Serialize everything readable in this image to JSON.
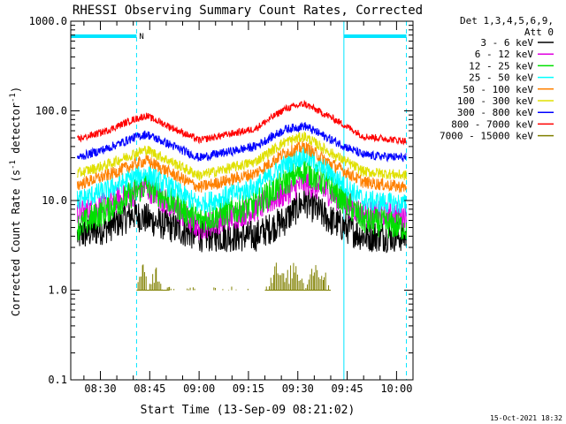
{
  "chart_data": {
    "type": "line",
    "title": "RHESSI Observing Summary Count Rates, Corrected",
    "xlabel": "Start Time (13-Sep-09 08:21:02)",
    "ylabel_main": "Corrected Count Rate (s",
    "ylabel_sup1": "-1",
    "ylabel_mid": " detector",
    "ylabel_sup2": "-1",
    "ylabel_end": ")",
    "yscale": "log",
    "ylim": [
      0.1,
      1000
    ],
    "xlim_minutes": [
      501,
      605
    ],
    "yticks": [
      {
        "v": 0.1,
        "label": "0.1"
      },
      {
        "v": 1,
        "label": "1.0"
      },
      {
        "v": 10,
        "label": "10.0"
      },
      {
        "v": 100,
        "label": "100.0"
      },
      {
        "v": 1000,
        "label": "1000.0"
      }
    ],
    "xticks": [
      {
        "m": 510,
        "label": "08:30"
      },
      {
        "m": 525,
        "label": "08:45"
      },
      {
        "m": 540,
        "label": "09:00"
      },
      {
        "m": 555,
        "label": "09:15"
      },
      {
        "m": 570,
        "label": "09:30"
      },
      {
        "m": 585,
        "label": "09:45"
      },
      {
        "m": 600,
        "label": "10:00"
      }
    ],
    "legend_header": [
      "Det 1,3,4,5,6,9,",
      "Att 0"
    ],
    "series": [
      {
        "name": "3 - 6 keV",
        "color": "#000000",
        "x": [
          503,
          512,
          520,
          540,
          557,
          566,
          572,
          580,
          590,
          603
        ],
        "y": [
          4,
          5,
          7,
          4,
          4,
          6,
          10,
          6,
          4,
          4
        ]
      },
      {
        "name": "6 - 12 keV",
        "color": "#e000e0",
        "x": [
          503,
          512,
          520,
          524,
          540,
          557,
          566,
          572,
          580,
          590,
          603
        ],
        "y": [
          7,
          9,
          12,
          14,
          5,
          8,
          12,
          16,
          12,
          7,
          7
        ]
      },
      {
        "name": "12 - 25 keV",
        "color": "#00e000",
        "x": [
          503,
          512,
          520,
          524,
          540,
          557,
          566,
          572,
          580,
          590,
          603
        ],
        "y": [
          5,
          8,
          12,
          15,
          6,
          9,
          16,
          22,
          14,
          6,
          5
        ]
      },
      {
        "name": "25 - 50 keV",
        "color": "#00ffff",
        "x": [
          503,
          512,
          520,
          524,
          540,
          557,
          566,
          572,
          580,
          590,
          603
        ],
        "y": [
          10,
          13,
          18,
          20,
          9,
          14,
          25,
          32,
          20,
          10,
          9
        ]
      },
      {
        "name": "50 - 100 keV",
        "color": "#ff8000",
        "x": [
          503,
          512,
          520,
          524,
          540,
          557,
          566,
          572,
          580,
          590,
          603
        ],
        "y": [
          15,
          19,
          25,
          28,
          14,
          20,
          34,
          40,
          26,
          16,
          14
        ]
      },
      {
        "name": "100 - 300 keV",
        "color": "#e0e000",
        "x": [
          503,
          512,
          520,
          524,
          540,
          557,
          566,
          572,
          580,
          590,
          603
        ],
        "y": [
          20,
          25,
          33,
          37,
          19,
          27,
          45,
          52,
          34,
          21,
          19
        ]
      },
      {
        "name": "300 - 800 keV",
        "color": "#0000ff",
        "x": [
          503,
          512,
          520,
          524,
          540,
          557,
          566,
          572,
          580,
          590,
          603
        ],
        "y": [
          30,
          38,
          50,
          55,
          30,
          40,
          62,
          68,
          48,
          32,
          30
        ]
      },
      {
        "name": "800 - 7000 keV",
        "color": "#ff0000",
        "x": [
          503,
          512,
          520,
          524,
          540,
          557,
          566,
          572,
          580,
          590,
          603
        ],
        "y": [
          48,
          60,
          80,
          88,
          47,
          63,
          105,
          120,
          85,
          52,
          46
        ]
      },
      {
        "name": "7000 - 15000 keV",
        "color": "#808000",
        "x": [
          521,
          523,
          525,
          527,
          529,
          531,
          560,
          563,
          566,
          569,
          572,
          575,
          578,
          580
        ],
        "y": [
          1.0,
          2.0,
          1.1,
          1.9,
          1.0,
          1.0,
          1.0,
          2.0,
          1.4,
          2.0,
          1.3,
          2.0,
          1.6,
          1.0
        ]
      }
    ],
    "saa_bars": [
      {
        "m_start": 501,
        "m_end": 521,
        "label": "N"
      },
      {
        "m_start": 584,
        "m_end": 603,
        "label": ""
      }
    ],
    "night_solid_lines_m": [
      501,
      584
    ],
    "night_dashed_lines_m": [
      521,
      603
    ],
    "grid": false,
    "legend_position": "right"
  },
  "footer_date": "15-Oct-2021 18:32"
}
